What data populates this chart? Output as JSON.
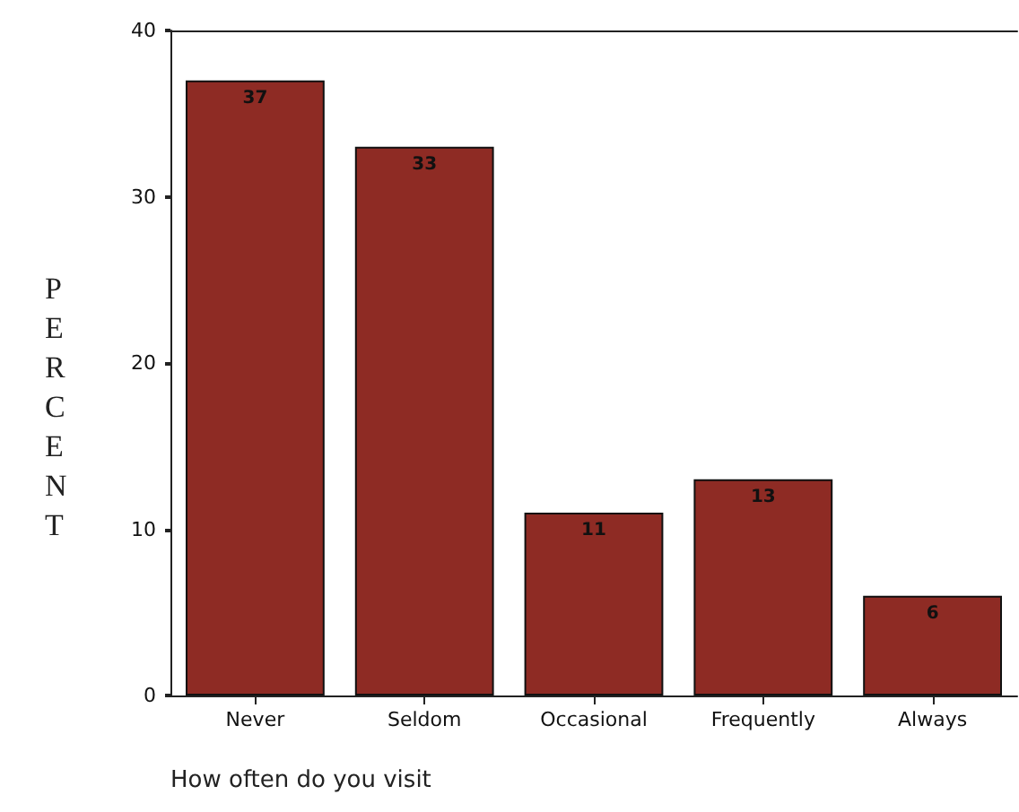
{
  "chart_data": {
    "type": "bar",
    "xlabel": "How often do you visit",
    "ylabel": "PERCENT",
    "categories": [
      "Never",
      "Seldom",
      "Occasional",
      "Frequently",
      "Always"
    ],
    "values": [
      37,
      33,
      11,
      13,
      6
    ],
    "color": "#8e2b24",
    "ylim": [
      0,
      40
    ],
    "yticks": [
      0,
      10,
      20,
      30,
      40
    ],
    "data_labels": true,
    "grid": false
  }
}
